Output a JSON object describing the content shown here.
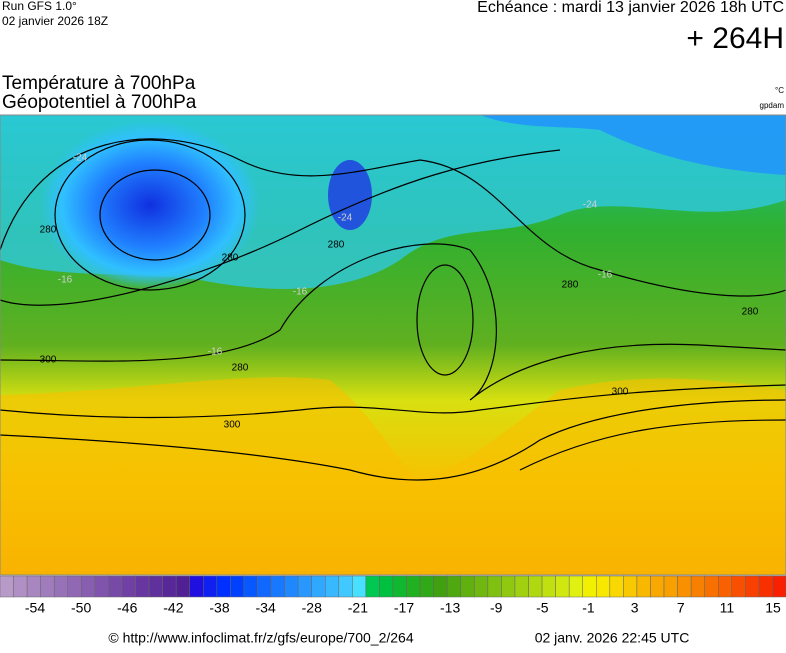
{
  "header": {
    "run": "Run GFS 1.0°",
    "run_date": "02 janvier 2026 18Z",
    "valid": "Echéance : mardi 13 janvier 2026 18h UTC",
    "lead": "+ 264H",
    "title_temp": "Température à 700hPa",
    "title_geo": "Géopotentiel à 700hPa",
    "unit_temp": "°C",
    "unit_geo": "gpdam"
  },
  "map": {
    "contour_labels": [
      "280",
      "280",
      "280",
      "280",
      "280",
      "280",
      "300",
      "300",
      "300",
      "-24",
      "-24",
      "-24",
      "-16",
      "-16",
      "-16",
      "-16"
    ]
  },
  "legend": {
    "colors": [
      "#b89ac8",
      "#b090c4",
      "#a886c0",
      "#a07cbc",
      "#9872b8",
      "#9068b4",
      "#885eb0",
      "#8054ac",
      "#784aa8",
      "#7040a4",
      "#6836a0",
      "#60309c",
      "#582898",
      "#502094",
      "#2010e0",
      "#1020f0",
      "#0030ff",
      "#0040ff",
      "#0858ff",
      "#1068ff",
      "#1878ff",
      "#2088ff",
      "#2898ff",
      "#30a8ff",
      "#38b8ff",
      "#40c8ff",
      "#48e0ff",
      "#00c850",
      "#00c040",
      "#10b830",
      "#20b020",
      "#30a818",
      "#40a010",
      "#50a810",
      "#60b010",
      "#70b810",
      "#80c010",
      "#90c810",
      "#a0d010",
      "#b0d810",
      "#c0e010",
      "#d0e810",
      "#e0f010",
      "#f0f000",
      "#f8e800",
      "#f8d800",
      "#f8c800",
      "#f8b800",
      "#f8a800",
      "#f8a000",
      "#f89000",
      "#f88000",
      "#f87000",
      "#f86000",
      "#f85000",
      "#f84000",
      "#f83000",
      "#f82000"
    ],
    "labels": [
      "-54",
      "-50",
      "-46",
      "-42",
      "-38",
      "-34",
      "-28",
      "-21",
      "-17",
      "-13",
      "-9",
      "-5",
      "-1",
      "3",
      "7",
      "11",
      "15"
    ]
  },
  "footer": {
    "url": "© http://www.infoclimat.fr/z/gfs/europe/700_2/264",
    "generated": "02 janv. 2026 22:45 UTC"
  }
}
